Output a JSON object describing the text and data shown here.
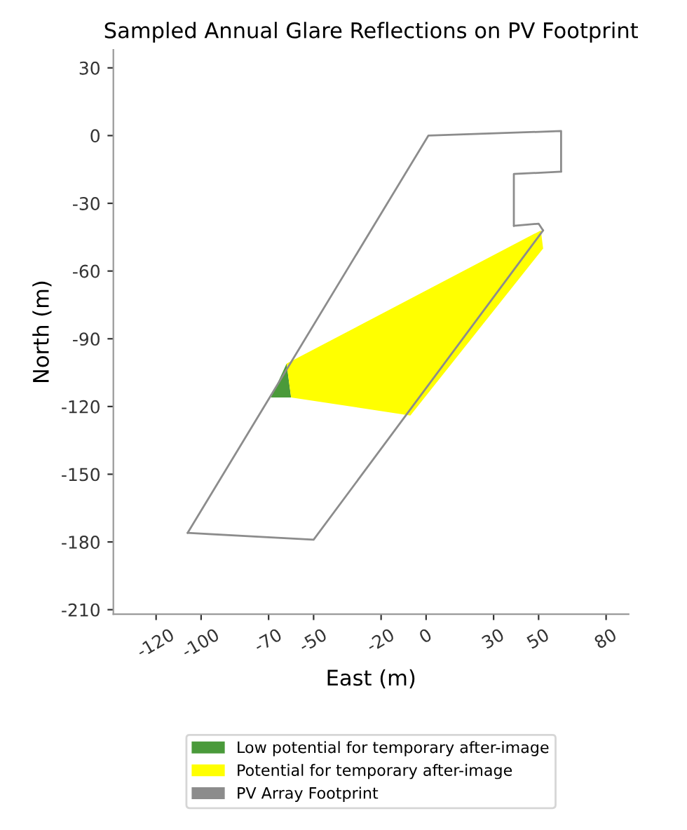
{
  "chart_data": {
    "type": "line",
    "title": "Sampled Annual Glare Reflections on PV Footprint",
    "xlabel": "East (m)",
    "ylabel": "North (m)",
    "series": [
      {
        "name": "Low potential for temporary after-image",
        "type": "area",
        "color": "#4a9a3a",
        "x": [
          -69,
          -62,
          -60
        ],
        "values": [
          -116,
          -101,
          -116
        ]
      },
      {
        "name": "Potential for temporary after-image",
        "type": "area",
        "color": "#ffff00",
        "x": [
          -62,
          51,
          52,
          -7,
          -60
        ],
        "values": [
          -101,
          -42,
          -50,
          -124,
          -116
        ]
      },
      {
        "name": "PV Array Footprint",
        "color": "#8c8c8c",
        "x": [
          -106,
          1,
          60,
          60
        ],
        "values": [
          -176,
          0,
          2,
          -16
        ]
      },
      {
        "color": "#8c8c8c",
        "x": [
          39,
          39,
          60
        ],
        "values": [
          -40,
          -17,
          -16
        ]
      },
      {
        "color": "#8c8c8c",
        "x": [
          39,
          50,
          52
        ],
        "values": [
          -40,
          -39,
          -42
        ]
      },
      {
        "color": "#8c8c8c",
        "x": [
          -106,
          -50,
          52
        ],
        "values": [
          -176,
          -179,
          -42
        ]
      }
    ],
    "xlim": [
      -139,
      90
    ],
    "ylim": [
      -212,
      38
    ],
    "xticks": [
      -120,
      -100,
      -70,
      -50,
      -20,
      0,
      30,
      50,
      80
    ],
    "yticks": [
      30,
      0,
      -30,
      -60,
      -90,
      -120,
      -150,
      -180,
      -210
    ],
    "grid": false,
    "legend": "bottom",
    "marker": "none",
    "line_style": "solid"
  }
}
